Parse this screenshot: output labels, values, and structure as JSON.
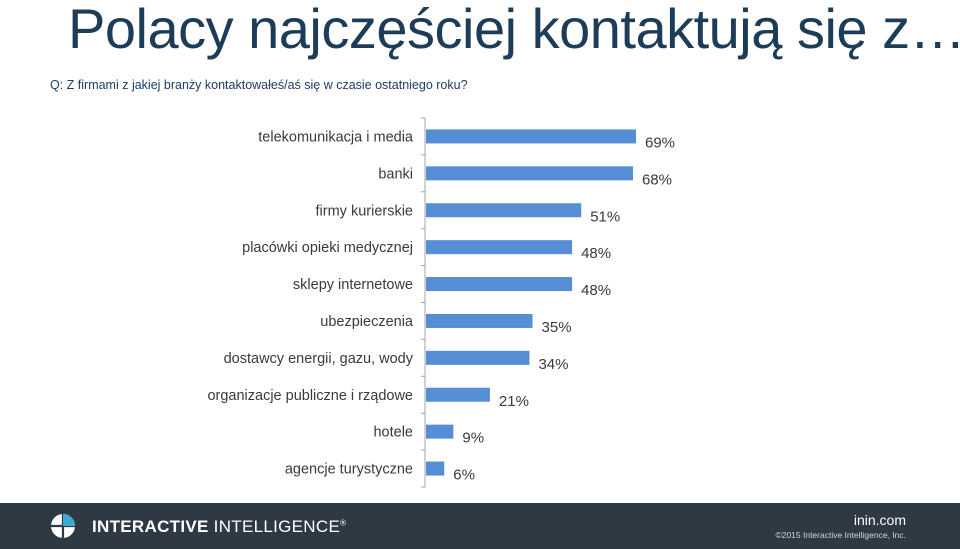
{
  "title": "Polacy najczęściej kontaktują się z…",
  "question": "Q: Z firmami z jakiej branży kontaktowałeś/aś się w czasie ostatniego roku?",
  "footer": {
    "brand_bold": "INTERACTIVE",
    "brand_regular": "INTELLIGENCE",
    "brand_mark": "®",
    "logo_icon": "interactive-intelligence-logo-icon",
    "site": "inin.com",
    "copyright": "©2015 Interactive Intelligence, Inc."
  },
  "chart_data": {
    "type": "bar",
    "orientation": "horizontal",
    "title": "",
    "xlabel": "",
    "ylabel": "",
    "xlim": [
      0,
      69
    ],
    "grid": false,
    "legend": "none",
    "bar_color": "#558ed5",
    "categories": [
      "telekomunikacja i media",
      "banki",
      "firmy kurierskie",
      "placówki opieki medycznej",
      "sklepy internetowe",
      "ubezpieczenia",
      "dostawcy energii, gazu, wody",
      "organizacje publiczne i rządowe",
      "hotele",
      "agencje turystyczne"
    ],
    "values": [
      69,
      68,
      51,
      48,
      48,
      35,
      34,
      21,
      9,
      6
    ],
    "value_labels": [
      "69%",
      "68%",
      "51%",
      "48%",
      "48%",
      "35%",
      "34%",
      "21%",
      "9%",
      "6%"
    ]
  }
}
